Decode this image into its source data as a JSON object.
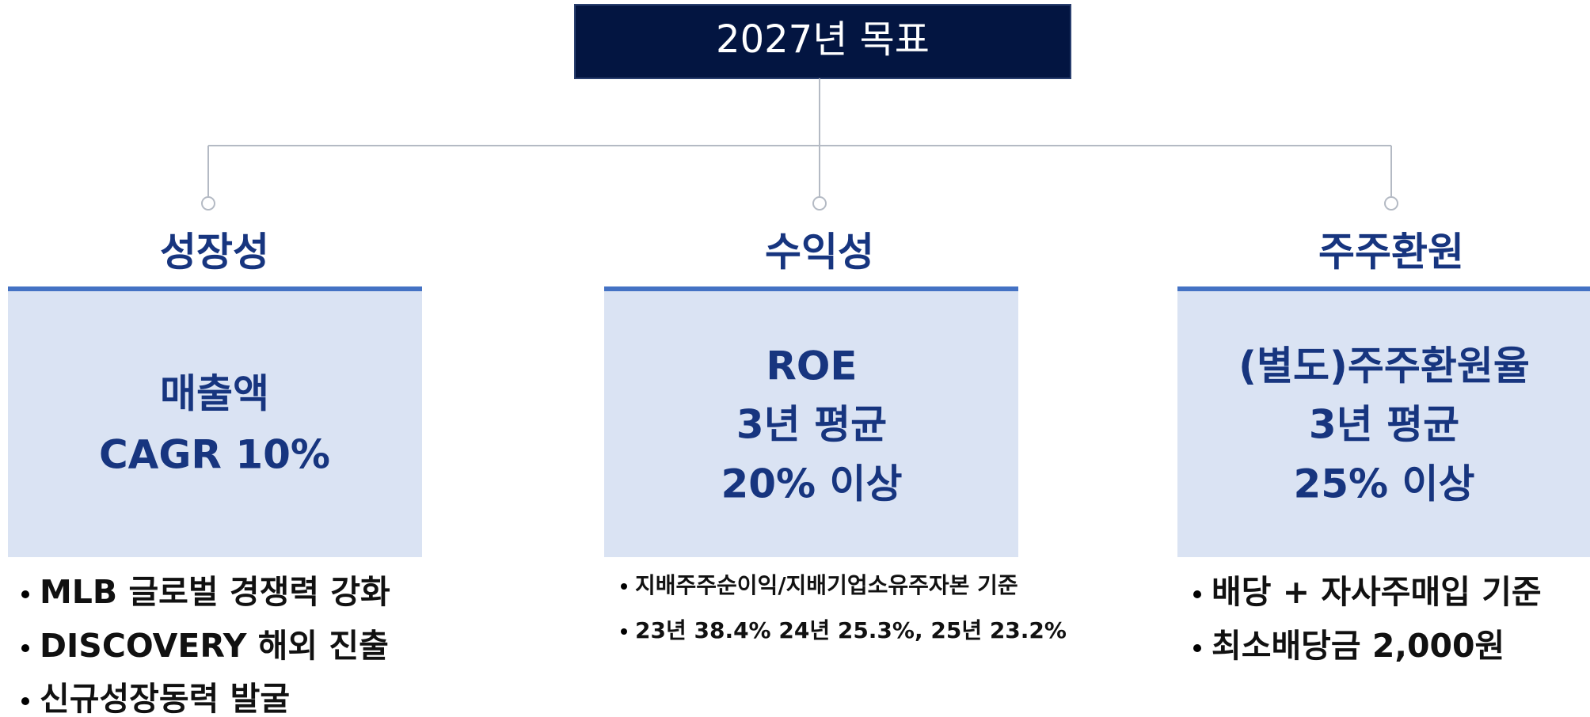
{
  "title": "2027년 목표",
  "columns": [
    {
      "heading": "성장성",
      "box_lines": [
        "매출액",
        "CAGR 10%"
      ],
      "bullets": [
        "MLB 글로벌 경쟁력 강화",
        "DISCOVERY 해외 진출",
        "신규성장동력 발굴"
      ]
    },
    {
      "heading": "수익성",
      "box_lines": [
        "ROE",
        "3년 평균",
        "20% 이상"
      ],
      "bullets": [
        "지배주주순이익/지배기업소유주자본 기준",
        "23년 38.4% 24년 25.3%, 25년 23.2%"
      ]
    },
    {
      "heading": "주주환원",
      "box_lines": [
        "(별도)주주환원율",
        "3년 평균",
        "25% 이상"
      ],
      "bullets": [
        "배당 + 자사주매입 기준",
        "최소배당금 2,000원"
      ]
    }
  ]
}
